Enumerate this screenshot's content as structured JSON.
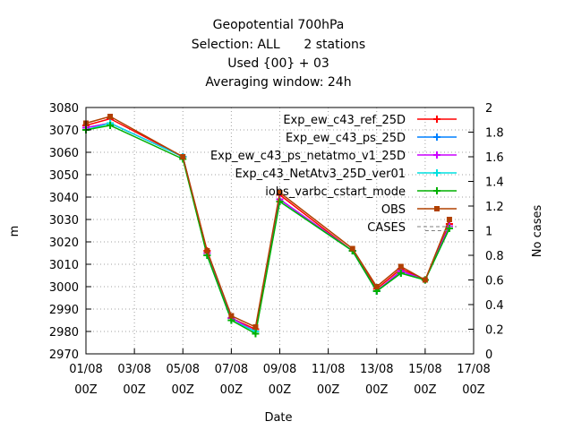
{
  "chart_data": {
    "type": "line",
    "title_lines": [
      "Geopotential 700hPa",
      "Selection: ALL      2 stations",
      "Used {00} + 03",
      "Averaging window: 24h"
    ],
    "xlabel": "Date",
    "ylabel": "m",
    "y2label": "No cases",
    "ylim": [
      2970,
      3080
    ],
    "y2lim": [
      0,
      2
    ],
    "yticks": [
      2970,
      2980,
      2990,
      3000,
      3010,
      3020,
      3030,
      3040,
      3050,
      3060,
      3070,
      3080
    ],
    "y2ticks": [
      "0",
      "0.2",
      "0.4",
      "0.6",
      "0.8",
      "1",
      "1.2",
      "1.4",
      "1.6",
      "1.8",
      "2"
    ],
    "xlim": [
      "2025-08-01",
      "2025-08-17"
    ],
    "xticks": [
      {
        "top": "01/08",
        "bottom": "00Z"
      },
      {
        "top": "03/08",
        "bottom": "00Z"
      },
      {
        "top": "05/08",
        "bottom": "00Z"
      },
      {
        "top": "07/08",
        "bottom": "00Z"
      },
      {
        "top": "09/08",
        "bottom": "00Z"
      },
      {
        "top": "11/08",
        "bottom": "00Z"
      },
      {
        "top": "13/08",
        "bottom": "00Z"
      },
      {
        "top": "15/08",
        "bottom": "00Z"
      },
      {
        "top": "17/08",
        "bottom": "00Z"
      }
    ],
    "grid": true,
    "legend_position": "top-right",
    "x": [
      "2025-08-01",
      "2025-08-02",
      "2025-08-05",
      "2025-08-06",
      "2025-08-07",
      "2025-08-08",
      "2025-08-09",
      "2025-08-12",
      "2025-08-13",
      "2025-08-14",
      "2025-08-15",
      "2025-08-16"
    ],
    "series": [
      {
        "name": "Exp_ew_c43_ref_25D",
        "color": "#ff0000",
        "marker": "plus",
        "values": [
          3072,
          3075,
          3058,
          3016,
          2986,
          2981,
          3041,
          3016,
          2999,
          3008,
          3003,
          3028
        ]
      },
      {
        "name": "Exp_ew_c43_ps_25D",
        "color": "#0080ff",
        "marker": "plus",
        "values": [
          3071,
          3073,
          3058,
          3015,
          2986,
          2980,
          3039,
          3016,
          2998,
          3007,
          3003,
          3027
        ]
      },
      {
        "name": "Exp_ew_c43_ps_netatmo_v1_25D",
        "color": "#cc00ff",
        "marker": "plus",
        "values": [
          3071,
          3073,
          3058,
          3015,
          2986,
          2980,
          3039,
          3016,
          2998,
          3007,
          3003,
          3027
        ]
      },
      {
        "name": "Exp_c43_NetAtv3_25D_ver01",
        "color": "#00e0e0",
        "marker": "plus",
        "values": [
          3070,
          3073,
          3058,
          3014,
          2985,
          2980,
          3038,
          3016,
          2998,
          3006,
          3003,
          3026
        ]
      },
      {
        "name": "iobs_varbc_cstart_mode",
        "color": "#00b000",
        "marker": "plus",
        "values": [
          3070,
          3072,
          3057,
          3014,
          2985,
          2979,
          3038,
          3016,
          2998,
          3006,
          3003,
          3026
        ]
      },
      {
        "name": "OBS",
        "color": "#b04000",
        "marker": "square",
        "values": [
          3073,
          3076,
          3058,
          3016,
          2987,
          2982,
          3042,
          3017,
          3000,
          3009,
          3003,
          3030
        ]
      }
    ],
    "cases_series": {
      "name": "CASES",
      "color": "#808080",
      "dash": true,
      "x": [
        "2025-08-15",
        "2025-08-16"
      ],
      "values": [
        1,
        1
      ]
    }
  }
}
